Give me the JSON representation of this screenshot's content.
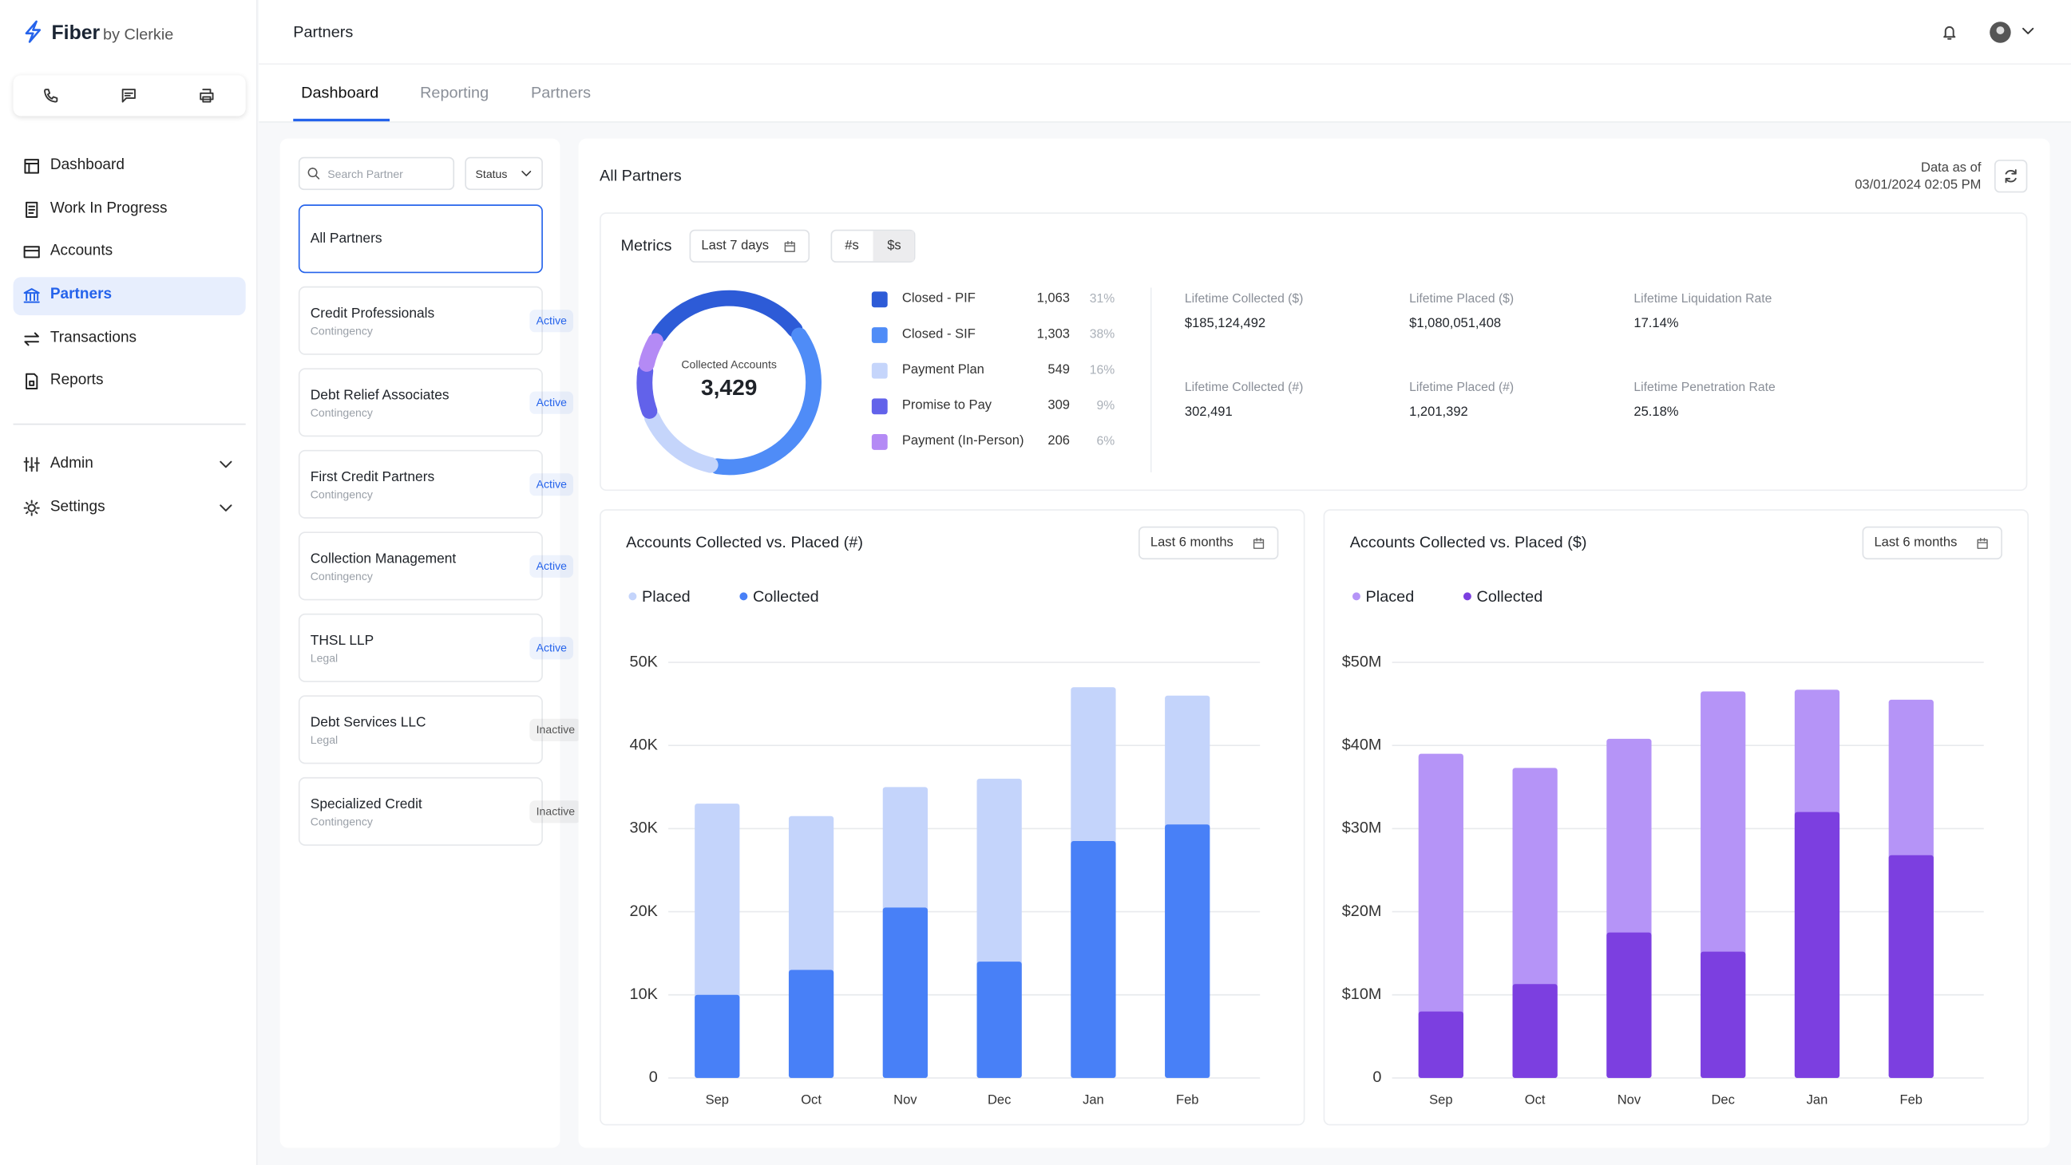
{
  "brand": {
    "name": "Fiber",
    "by": "by Clerkie"
  },
  "nav": {
    "items": [
      "Dashboard",
      "Work In Progress",
      "Accounts",
      "Partners",
      "Transactions",
      "Reports"
    ],
    "active": 3,
    "groups": [
      "Admin",
      "Settings"
    ]
  },
  "header": {
    "title": "Partners"
  },
  "tabs": {
    "items": [
      "Dashboard",
      "Reporting",
      "Partners"
    ],
    "active": 0
  },
  "partner_list": {
    "search_placeholder": "Search Partner",
    "filter": "Status",
    "selected": 0,
    "partners": [
      {
        "name": "All Partners"
      },
      {
        "name": "Credit Professionals",
        "type": "Contingency",
        "status": "Active",
        "status_color": "#2563eb"
      },
      {
        "name": "Debt Relief Associates",
        "type": "Contingency",
        "status": "Active",
        "status_color": "#2563eb"
      },
      {
        "name": "First Credit Partners",
        "type": "Contingency",
        "status": "Active",
        "status_color": "#2563eb"
      },
      {
        "name": "Collection Management",
        "type": "Contingency",
        "status": "Active",
        "status_color": "#2563eb"
      },
      {
        "name": "THSL LLP",
        "type": "Legal",
        "status": "Active",
        "status_color": "#2563eb"
      },
      {
        "name": "Debt Services LLC",
        "type": "Legal",
        "status": "Inactive",
        "status_color": "#555555"
      },
      {
        "name": "Specialized Credit",
        "type": "Contingency",
        "status": "Inactive",
        "status_color": "#555555"
      }
    ]
  },
  "panel": {
    "title": "All Partners",
    "as_of_label": "Data as of",
    "as_of": "03/01/2024 02:05 PM"
  },
  "metrics": {
    "title": "Metrics",
    "range": "Last 7 days",
    "toggles": [
      "#s",
      "$s"
    ],
    "toggle_active": 1,
    "donut": {
      "type": "donut",
      "label": "Collected Accounts",
      "total": "3,429",
      "categories": [
        "Closed - PIF",
        "Closed - SIF",
        "Payment Plan",
        "Promise to Pay",
        "Payment (In-Person)"
      ],
      "values": [
        1063,
        1303,
        549,
        309,
        206
      ],
      "value_labels": [
        "1,063",
        "1,303",
        "549",
        "309",
        "206"
      ],
      "shares": [
        "31%",
        "38%",
        "16%",
        "9%",
        "6%"
      ],
      "colors": [
        "#2d5bd7",
        "#4f8cf7",
        "#c5d5fb",
        "#6262ea",
        "#b48af5"
      ]
    },
    "stats": [
      {
        "label": "Lifetime Collected ($)",
        "value": "$185,124,492"
      },
      {
        "label": "Lifetime Placed ($)",
        "value": "$1,080,051,408"
      },
      {
        "label": "Lifetime Liquidation Rate",
        "value": "17.14%"
      },
      {
        "label": "Lifetime Collected (#)",
        "value": "302,491"
      },
      {
        "label": "Lifetime Placed (#)",
        "value": "1,201,392"
      },
      {
        "label": "Lifetime Penetration Rate",
        "value": "25.18%"
      }
    ]
  },
  "charts": [
    {
      "type": "bar",
      "title": "Accounts Collected vs. Placed (#)",
      "range": "Last 6 months",
      "categories": [
        "Sep",
        "Oct",
        "Nov",
        "Dec",
        "Jan",
        "Feb"
      ],
      "series": [
        {
          "name": "Placed",
          "color": "#c4d4fb",
          "values": [
            33000,
            31500,
            35000,
            36000,
            47000,
            46000
          ]
        },
        {
          "name": "Collected",
          "color": "#4880f7",
          "values": [
            10000,
            13000,
            20500,
            14000,
            28500,
            30500
          ]
        }
      ],
      "ylim": [
        0,
        50000
      ],
      "yticks": [
        0,
        {
          "value": 10000,
          "label": "10K"
        },
        {
          "value": 20000,
          "label": "20K"
        },
        {
          "value": 30000,
          "label": "30K"
        },
        {
          "value": 40000,
          "label": "40K"
        },
        {
          "value": 50000,
          "label": "50K"
        }
      ],
      "grid": true
    },
    {
      "type": "bar",
      "title": "Accounts Collected vs. Placed ($)",
      "range": "Last 6 months",
      "categories": [
        "Sep",
        "Oct",
        "Nov",
        "Dec",
        "Jan",
        "Feb"
      ],
      "series": [
        {
          "name": "Placed",
          "color": "#b594f7",
          "values": [
            39000000,
            37300000,
            40800000,
            46500000,
            46700000,
            45500000
          ]
        },
        {
          "name": "Collected",
          "color": "#7c3fe0",
          "values": [
            8000000,
            11300000,
            17500000,
            15200000,
            32000000,
            26800000
          ]
        }
      ],
      "ylim": [
        0,
        50000000
      ],
      "yticks": [
        0,
        {
          "value": 10000000,
          "label": "$10M"
        },
        {
          "value": 20000000,
          "label": "$20M"
        },
        {
          "value": 30000000,
          "label": "$30M"
        },
        {
          "value": 40000000,
          "label": "$40M"
        },
        {
          "value": 50000000,
          "label": "$50M"
        }
      ],
      "grid": true
    }
  ]
}
